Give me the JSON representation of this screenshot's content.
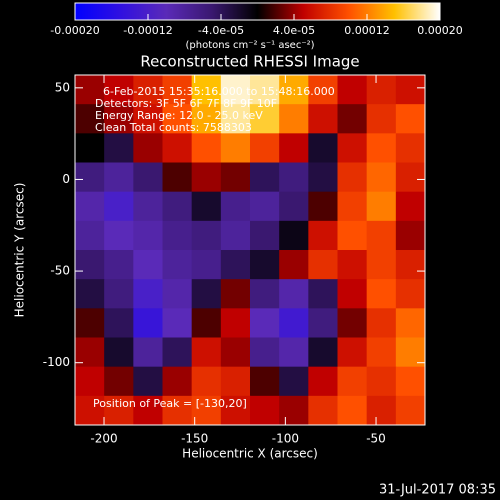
{
  "chart_data": {
    "type": "heatmap",
    "title": "Reconstructed RHESSI Image",
    "x_label": "Heliocentric X (arcsec)",
    "y_label": "Heliocentric Y (arcsec)",
    "colorbar_label": "(photons cm⁻² s⁻¹ asec⁻²)",
    "annotations": [
      "6-Feb-2015 15:35:16.000 to 15:48:16.000",
      "Detectors: 3F 5F 6F 7F 8F 9F 10F",
      "Energy Range: 12.0 - 25.0 keV",
      "Clean     Total counts: 7588303"
    ],
    "peak_label": "Position of Peak = [-130,20]",
    "footer": "31-Jul-2017 08:35",
    "xlim": [
      -216,
      -23
    ],
    "ylim": [
      -134,
      57
    ],
    "xticks": [
      -200,
      -150,
      -100,
      -50
    ],
    "yticks": [
      50,
      0,
      -50,
      -100
    ],
    "zlim": [
      -0.0002,
      0.0002
    ],
    "zticks": [
      {
        "value": -0.0002,
        "label": "-0.00020"
      },
      {
        "value": -0.00012,
        "label": "-0.00012"
      },
      {
        "value": -4e-05,
        "label": "-4.0e-05"
      },
      {
        "value": 4e-05,
        "label": "4.0e-05"
      },
      {
        "value": 0.00012,
        "label": "0.00012"
      },
      {
        "value": 0.0002,
        "label": "0.00020"
      }
    ],
    "colormap": [
      "#0000ff",
      "#3010e0",
      "#5a2ab8",
      "#3a1870",
      "#000000",
      "#c00000",
      "#ff5000",
      "#ffc000",
      "#ffffff"
    ],
    "z": [
      [
        4e-05,
        5e-05,
        7e-05,
        9e-05,
        0.00015,
        0.00019,
        0.00018,
        0.00014,
        9e-05,
        5e-05,
        7e-05,
        6e-05
      ],
      [
        2e-05,
        4e-05,
        6e-05,
        0.0001,
        0.00014,
        0.00018,
        0.00016,
        0.00012,
        6e-05,
        3e-05,
        8e-05,
        0.0001
      ],
      [
        0,
        -3e-05,
        4e-05,
        6e-05,
        0.0001,
        0.00012,
        9e-05,
        5e-05,
        -2e-05,
        6e-05,
        0.0001,
        8e-05
      ],
      [
        -6e-05,
        -8e-05,
        -5e-05,
        2e-05,
        4e-05,
        3e-05,
        -4e-05,
        -6e-05,
        -3e-05,
        8e-05,
        0.00011,
        7e-05
      ],
      [
        -9e-05,
        -0.00012,
        -8e-05,
        -6e-05,
        -2e-05,
        -7e-05,
        -8e-05,
        -5e-05,
        2e-05,
        9e-05,
        0.00012,
        5e-05
      ],
      [
        -8e-05,
        -0.0001,
        -9e-05,
        -7e-05,
        -6e-05,
        -8e-05,
        -5e-05,
        -1e-05,
        6e-05,
        0.0001,
        9e-05,
        4e-05
      ],
      [
        -5e-05,
        -7e-05,
        -0.0001,
        -8e-05,
        -7e-05,
        -4e-05,
        -2e-05,
        4e-05,
        8e-05,
        6e-05,
        9e-05,
        7e-05
      ],
      [
        -3e-05,
        -6e-05,
        -0.00012,
        -9e-05,
        -3e-05,
        3e-05,
        -6e-05,
        -9e-05,
        -4e-05,
        5e-05,
        0.0001,
        8e-05
      ],
      [
        2e-05,
        -4e-05,
        -0.00014,
        -0.0001,
        2e-05,
        5e-05,
        -0.0001,
        -0.00013,
        -6e-05,
        3e-05,
        8e-05,
        0.00011
      ],
      [
        4e-05,
        -2e-05,
        -8e-05,
        -4e-05,
        6e-05,
        4e-05,
        -7e-05,
        -9e-05,
        -2e-05,
        6e-05,
        9e-05,
        0.00012
      ],
      [
        5e-05,
        3e-05,
        -3e-05,
        4e-05,
        8e-05,
        7e-05,
        2e-05,
        -3e-05,
        5e-05,
        9e-05,
        8e-05,
        0.0001
      ],
      [
        6e-05,
        7e-05,
        5e-05,
        8e-05,
        9e-05,
        6e-05,
        5e-05,
        4e-05,
        8e-05,
        0.0001,
        7e-05,
        9e-05
      ]
    ]
  }
}
